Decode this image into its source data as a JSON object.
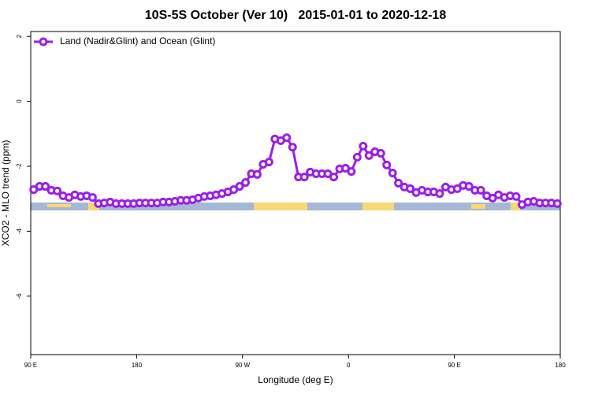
{
  "chart_data": {
    "type": "line",
    "title": "10S-5S October (Ver 10)   2015-01-01 to 2020-12-18",
    "x_label": "Longitude (deg E)",
    "y_label": "XCO2 - MLO trend (ppm)",
    "xlim": [
      90,
      540
    ],
    "ylim": [
      -7.8,
      2.15
    ],
    "xticks": [
      {
        "value": 90,
        "label": "90 E"
      },
      180,
      {
        "value": 270,
        "label": "90 W"
      },
      {
        "value": 360,
        "label": "0"
      },
      {
        "value": 450,
        "label": "90 E"
      },
      {
        "value": 540,
        "label": "180"
      }
    ],
    "yticks": [
      2,
      0,
      -2,
      -4,
      -6
    ],
    "grid": false,
    "legend": "top-left",
    "x": [
      92.5,
      97.5,
      102.5,
      107.5,
      112.5,
      117.5,
      122.5,
      127.5,
      132.5,
      137.5,
      142.5,
      147.5,
      152.5,
      157.5,
      162.5,
      167.5,
      172.5,
      177.5,
      182.5,
      187.5,
      192.5,
      197.5,
      202.5,
      207.5,
      212.5,
      217.5,
      222.5,
      227.5,
      232.5,
      237.5,
      242.5,
      247.5,
      252.5,
      257.5,
      262.5,
      267.5,
      272.5,
      277.5,
      282.5,
      287.5,
      292.5,
      297.5,
      302.5,
      307.5,
      312.5,
      317.5,
      322.5,
      327.5,
      332.5,
      337.5,
      342.5,
      347.5,
      352.5,
      357.5,
      362.5,
      367.5,
      372.5,
      377.5,
      382.5,
      387.5,
      392.5,
      397.5,
      402.5,
      407.5,
      412.5,
      417.5,
      422.5,
      427.5,
      432.5,
      437.5,
      442.5,
      447.5,
      452.5,
      457.5,
      462.5,
      467.5,
      472.5,
      477.5,
      482.5,
      487.5,
      492.5,
      497.5,
      502.5,
      507.5,
      512.5,
      517.5,
      522.5,
      527.5,
      532.5,
      537.5
    ],
    "series": [
      {
        "name": "Land (Nadir&Glint) and Ocean (Glint)",
        "color": "#9b1fe6",
        "values": [
          -2.72,
          -2.62,
          -2.62,
          -2.74,
          -2.76,
          -2.91,
          -2.96,
          -2.88,
          -2.93,
          -2.91,
          -2.96,
          -3.15,
          -3.13,
          -3.1,
          -3.15,
          -3.15,
          -3.15,
          -3.15,
          -3.13,
          -3.13,
          -3.13,
          -3.13,
          -3.1,
          -3.1,
          -3.08,
          -3.05,
          -3.05,
          -3.03,
          -2.98,
          -2.93,
          -2.91,
          -2.88,
          -2.84,
          -2.79,
          -2.72,
          -2.62,
          -2.5,
          -2.23,
          -2.25,
          -1.94,
          -1.87,
          -1.16,
          -1.21,
          -1.12,
          -1.41,
          -2.33,
          -2.33,
          -2.18,
          -2.23,
          -2.23,
          -2.23,
          -2.33,
          -2.08,
          -2.06,
          -2.16,
          -1.72,
          -1.38,
          -1.67,
          -1.55,
          -1.6,
          -1.96,
          -2.21,
          -2.52,
          -2.64,
          -2.69,
          -2.81,
          -2.74,
          -2.79,
          -2.79,
          -2.84,
          -2.64,
          -2.72,
          -2.69,
          -2.59,
          -2.62,
          -2.74,
          -2.74,
          -2.91,
          -2.98,
          -2.88,
          -2.96,
          -2.91,
          -2.93,
          -3.18,
          -3.1,
          -3.08,
          -3.13,
          -3.13,
          -3.13,
          -3.15
        ]
      }
    ]
  }
}
